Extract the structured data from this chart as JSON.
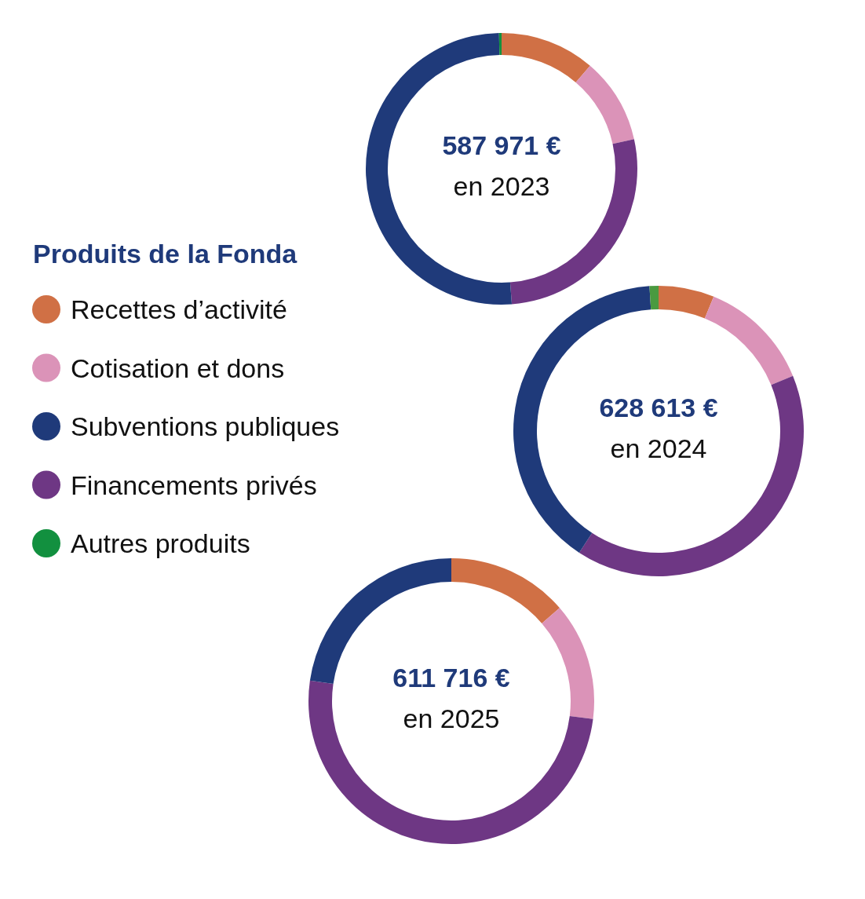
{
  "chart_data": [
    {
      "type": "donut",
      "title": "587 971 €",
      "subtitle": "en 2023",
      "legend_title": "Produits de la Fonda",
      "legend": "left",
      "categories": [
        "Recettes d’activité",
        "Cotisation et dons",
        "Subventions publiques",
        "Financements privés",
        "Autres produits"
      ],
      "values": [
        11.3,
        10.2,
        50.9,
        27.3,
        0.3
      ],
      "colors": [
        "#d07045",
        "#db93b8",
        "#1f3a7a",
        "#6e3784",
        "#12903f"
      ]
    },
    {
      "type": "donut",
      "title": "628 613 €",
      "subtitle": "en 2024",
      "categories": [
        null,
        null,
        null,
        null,
        null
      ],
      "values": [
        6.2,
        12.6,
        39.8,
        40.4,
        1.0
      ],
      "colors": [
        "#d07045",
        "#db93b8",
        "#1f3a7a",
        "#6e3784",
        "#4a9a40"
      ]
    },
    {
      "type": "donut",
      "title": "611 716 €",
      "subtitle": "en 2025",
      "categories": [
        null,
        null,
        null,
        null
      ],
      "values": [
        13.7,
        13.3,
        22.7,
        50.3
      ],
      "colors": [
        "#d07045",
        "#db93b8",
        "#1f3a7a",
        "#6e3784"
      ]
    }
  ]
}
